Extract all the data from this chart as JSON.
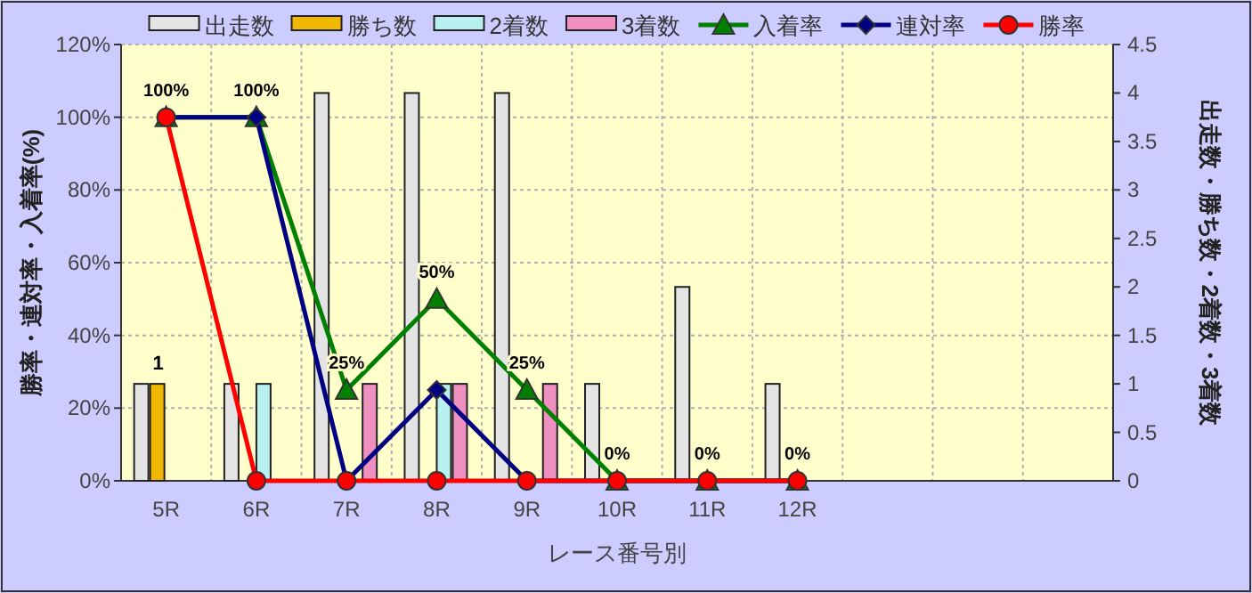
{
  "chart_data": {
    "type": "bar",
    "categories": [
      "5R",
      "6R",
      "7R",
      "8R",
      "9R",
      "10R",
      "11R",
      "12R",
      null,
      null,
      null
    ],
    "xlabel": "レース番号別",
    "ylabel": "勝率・連対率・入着率(%)",
    "y2label": "出走数・勝ち数・2着数・3着数",
    "ylim": [
      0,
      120
    ],
    "yticks": [
      {
        "value": 0,
        "label": "0%"
      },
      {
        "value": 20,
        "label": "20%"
      },
      {
        "value": 40,
        "label": "40%"
      },
      {
        "value": 60,
        "label": "60%"
      },
      {
        "value": 80,
        "label": "80%"
      },
      {
        "value": 100,
        "label": "100%"
      },
      {
        "value": 120,
        "label": "120%"
      }
    ],
    "y2lim": [
      0,
      4.5
    ],
    "y2ticks": [
      0,
      0.5,
      1,
      1.5,
      2,
      2.5,
      3,
      3.5,
      4,
      4.5
    ],
    "grid": true,
    "legend": "top",
    "series": [
      {
        "name": "出走数",
        "axis": "y2",
        "color": "#e4e4e4",
        "values": [
          1,
          1,
          4,
          4,
          4,
          1,
          2,
          1,
          null,
          null,
          null
        ]
      },
      {
        "name": "勝ち数",
        "axis": "y2",
        "color": "#f0b800",
        "values": [
          1,
          0,
          0,
          0,
          0,
          0,
          0,
          0,
          null,
          null,
          null
        ],
        "value_labels": [
          "1",
          null,
          null,
          null,
          null,
          null,
          null,
          null,
          null,
          null,
          null
        ]
      },
      {
        "name": "2着数",
        "axis": "y2",
        "color": "#b8f0f0",
        "values": [
          0,
          1,
          0,
          1,
          0,
          0,
          0,
          0,
          null,
          null,
          null
        ]
      },
      {
        "name": "3着数",
        "axis": "y2",
        "color": "#f090c0",
        "values": [
          0,
          0,
          1,
          1,
          1,
          0,
          0,
          0,
          null,
          null,
          null
        ]
      },
      {
        "name": "入着率",
        "type": "line",
        "marker": "triangle",
        "color": "#008000",
        "values": [
          100,
          100,
          25,
          50,
          25,
          0,
          0,
          0,
          null,
          null,
          null
        ],
        "value_labels": [
          "100%",
          "100%",
          "25%",
          "50%",
          "25%",
          "0%",
          "0%",
          "0%",
          null,
          null,
          null
        ]
      },
      {
        "name": "連対率",
        "type": "line",
        "marker": "diamond",
        "color": "#000080",
        "values": [
          100,
          100,
          0,
          25,
          0,
          0,
          0,
          0,
          null,
          null,
          null
        ]
      },
      {
        "name": "勝率",
        "type": "line",
        "marker": "circle",
        "color": "#ff0000",
        "values": [
          100,
          0,
          0,
          0,
          0,
          0,
          0,
          0,
          null,
          null,
          null
        ]
      }
    ]
  }
}
